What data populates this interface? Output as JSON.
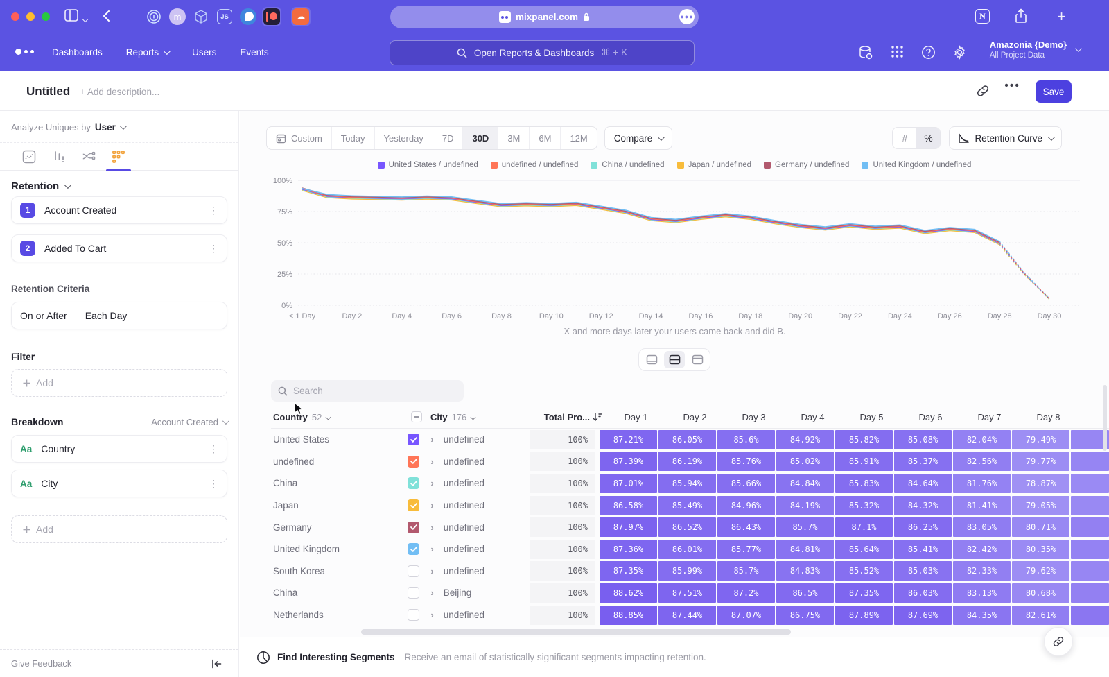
{
  "colors": {
    "chrome_purple": "#5b53e2",
    "accent": "#584ae4",
    "save_button": "#4c40e0",
    "heatmap_light": "#aba0f6",
    "heatmap_dark": "#7458ee"
  },
  "browser": {
    "url": "mixpanel.com",
    "extension_icons": [
      "onepassword-icon",
      "m-avatar-icon",
      "cube-icon",
      "js-icon",
      "bird-icon",
      "patreon-icon",
      "soundcloud-icon"
    ],
    "right_icons": [
      "notion-icon",
      "share-icon",
      "new-tab-icon"
    ]
  },
  "nav": {
    "items": [
      "Dashboards",
      "Reports",
      "Users",
      "Events"
    ],
    "search_placeholder": "Open Reports & Dashboards",
    "search_shortcut": "⌘ + K",
    "project_name": "Amazonia {Demo}",
    "project_scope": "All Project Data"
  },
  "report_header": {
    "title": "Untitled",
    "description_placeholder": "+ Add description...",
    "save_label": "Save"
  },
  "sidebar": {
    "analyze_label": "Analyze Uniques by",
    "analyze_value": "User",
    "section_title": "Retention",
    "steps": [
      {
        "num": "1",
        "label": "Account Created"
      },
      {
        "num": "2",
        "label": "Added To Cart"
      }
    ],
    "criteria_label": "Retention Criteria",
    "criteria_value_1": "On or After",
    "criteria_value_2": "Each Day",
    "filter_label": "Filter",
    "add_label": "Add",
    "breakdown_label": "Breakdown",
    "breakdown_event": "Account Created",
    "breakdowns": [
      {
        "type": "Aa",
        "label": "Country"
      },
      {
        "type": "Aa",
        "label": "City"
      }
    ],
    "give_feedback": "Give Feedback"
  },
  "toolbar": {
    "ranges": [
      "Custom",
      "Today",
      "Yesterday",
      "7D",
      "30D",
      "3M",
      "6M",
      "12M"
    ],
    "selected_range": "30D",
    "compare_label": "Compare",
    "number_toggle": [
      "#",
      "%"
    ],
    "number_toggle_selected": "%",
    "view_label": "Retention Curve"
  },
  "chart_data": {
    "type": "line",
    "caption": "X and more days later your users came back and did B.",
    "ylim": [
      0,
      100
    ],
    "y_ticks": [
      "0%",
      "25%",
      "50%",
      "75%",
      "100%"
    ],
    "x_tick_days": [
      0,
      2,
      4,
      6,
      8,
      10,
      12,
      14,
      16,
      18,
      20,
      22,
      24,
      26,
      28,
      30
    ],
    "x_tick_labels": [
      "< 1 Day",
      "Day 2",
      "Day 4",
      "Day 6",
      "Day 8",
      "Day 10",
      "Day 12",
      "Day 14",
      "Day 16",
      "Day 18",
      "Day 20",
      "Day 22",
      "Day 24",
      "Day 26",
      "Day 28",
      "Day 30"
    ],
    "dashed_from_day": 28,
    "legend_position": "top",
    "grid": true,
    "series": [
      {
        "name": "United States / undefined",
        "color": "#7856FF",
        "values": [
          93,
          87.2,
          86.1,
          85.7,
          85.2,
          86,
          85.3,
          82.5,
          79.9,
          80.6,
          80,
          80.9,
          77.8,
          74.5,
          68.8,
          67.2,
          69.8,
          71.8,
          69.8,
          66.2,
          63.2,
          61.2,
          63.8,
          61.8,
          62.8,
          58.4,
          60.8,
          59.2,
          49.5,
          25,
          5
        ]
      },
      {
        "name": "undefined / undefined",
        "color": "#FF7557",
        "values": [
          93.4,
          87.6,
          86.5,
          86.1,
          85.6,
          86.4,
          85.7,
          82.9,
          80.3,
          81,
          80.4,
          81.3,
          78.2,
          74.9,
          69.2,
          67.6,
          70.2,
          72.2,
          70.2,
          66.6,
          63.6,
          61.6,
          64.2,
          62.2,
          63.2,
          58.8,
          61.2,
          59.6,
          49.9,
          25.2,
          5.1
        ]
      },
      {
        "name": "China / undefined",
        "color": "#80E1D9",
        "values": [
          92.6,
          86.8,
          85.7,
          85.3,
          84.8,
          85.6,
          84.9,
          82.1,
          79.5,
          80.2,
          79.6,
          80.5,
          77.4,
          74.1,
          68.4,
          66.8,
          69.4,
          71.4,
          69.4,
          65.8,
          62.8,
          60.8,
          63.4,
          61.4,
          62.4,
          58,
          60.4,
          58.8,
          49.1,
          24.8,
          4.9
        ]
      },
      {
        "name": "Japan / undefined",
        "color": "#F8BC3B",
        "values": [
          92,
          86.2,
          85.1,
          84.7,
          84.2,
          85,
          84.3,
          81.5,
          78.9,
          79.6,
          79,
          79.9,
          76.8,
          73.5,
          67.8,
          66.2,
          68.8,
          70.8,
          68.8,
          65.2,
          62.2,
          60.2,
          62.8,
          60.8,
          61.8,
          57.4,
          59.8,
          58.2,
          48.5,
          24.5,
          4.8
        ]
      },
      {
        "name": "Germany / undefined",
        "color": "#B2596E",
        "values": [
          93.9,
          88.1,
          87,
          86.6,
          86.1,
          86.9,
          86.2,
          83.4,
          80.8,
          81.5,
          80.9,
          81.8,
          78.7,
          75.4,
          69.7,
          68.1,
          70.7,
          72.7,
          70.7,
          67.1,
          64.1,
          62.1,
          64.7,
          62.7,
          63.7,
          59.3,
          61.7,
          60.1,
          50.4,
          25.5,
          5.2
        ]
      },
      {
        "name": "United Kingdom / undefined",
        "color": "#72BEF4",
        "values": [
          93.5,
          88.7,
          87.6,
          87.2,
          86.7,
          87.5,
          86.8,
          84,
          81.4,
          82.1,
          81.5,
          82.4,
          79.3,
          76,
          70.3,
          68.7,
          71.3,
          73.3,
          71.3,
          67.7,
          64.7,
          62.7,
          65.3,
          63.3,
          64.3,
          59.9,
          62.3,
          60.7,
          51,
          25.7,
          5.2
        ]
      }
    ]
  },
  "view_toggles": {
    "options": [
      "chart-only",
      "split-view",
      "table-only"
    ],
    "selected": "split-view"
  },
  "table": {
    "search_placeholder": "Search",
    "country_header": {
      "label": "Country",
      "count": "52"
    },
    "city_header": {
      "label": "City",
      "count": "176"
    },
    "total_header": "Total Pro...",
    "day_headers": [
      "Day 1",
      "Day 2",
      "Day 3",
      "Day 4",
      "Day 5",
      "Day 6",
      "Day 7",
      "Day 8"
    ],
    "rows": [
      {
        "country": "United States",
        "checked": true,
        "check_color": "#7856FF",
        "city": "undefined",
        "total": "100%",
        "values": [
          "87.21%",
          "86.05%",
          "85.6%",
          "84.92%",
          "85.82%",
          "85.08%",
          "82.04%",
          "79.49%"
        ]
      },
      {
        "country": "undefined",
        "checked": true,
        "check_color": "#FF7557",
        "city": "undefined",
        "total": "100%",
        "values": [
          "87.39%",
          "86.19%",
          "85.76%",
          "85.02%",
          "85.91%",
          "85.37%",
          "82.56%",
          "79.77%"
        ]
      },
      {
        "country": "China",
        "checked": true,
        "check_color": "#80E1D9",
        "city": "undefined",
        "total": "100%",
        "values": [
          "87.01%",
          "85.94%",
          "85.66%",
          "84.84%",
          "85.83%",
          "84.64%",
          "81.76%",
          "78.87%"
        ]
      },
      {
        "country": "Japan",
        "checked": true,
        "check_color": "#F8BC3B",
        "city": "undefined",
        "total": "100%",
        "values": [
          "86.58%",
          "85.49%",
          "84.96%",
          "84.19%",
          "85.32%",
          "84.32%",
          "81.41%",
          "79.05%"
        ]
      },
      {
        "country": "Germany",
        "checked": true,
        "check_color": "#B2596E",
        "city": "undefined",
        "total": "100%",
        "values": [
          "87.97%",
          "86.52%",
          "86.43%",
          "85.7%",
          "87.1%",
          "86.25%",
          "83.05%",
          "80.71%"
        ]
      },
      {
        "country": "United Kingdom",
        "checked": true,
        "check_color": "#72BEF4",
        "city": "undefined",
        "total": "100%",
        "values": [
          "87.36%",
          "86.01%",
          "85.77%",
          "84.81%",
          "85.64%",
          "85.41%",
          "82.42%",
          "80.35%"
        ]
      },
      {
        "country": "South Korea",
        "checked": false,
        "check_color": null,
        "city": "undefined",
        "total": "100%",
        "values": [
          "87.35%",
          "85.99%",
          "85.7%",
          "84.83%",
          "85.52%",
          "85.03%",
          "82.33%",
          "79.62%"
        ]
      },
      {
        "country": "China",
        "checked": false,
        "check_color": null,
        "city": "Beijing",
        "total": "100%",
        "values": [
          "88.62%",
          "87.51%",
          "87.2%",
          "86.5%",
          "87.35%",
          "86.03%",
          "83.13%",
          "80.68%"
        ]
      },
      {
        "country": "Netherlands",
        "checked": false,
        "check_color": null,
        "city": "undefined",
        "total": "100%",
        "values": [
          "88.85%",
          "87.44%",
          "87.07%",
          "86.75%",
          "87.89%",
          "87.69%",
          "84.35%",
          "82.61%"
        ]
      }
    ]
  },
  "footer": {
    "title": "Find Interesting Segments",
    "description": "Receive an email of statistically significant segments impacting retention."
  }
}
